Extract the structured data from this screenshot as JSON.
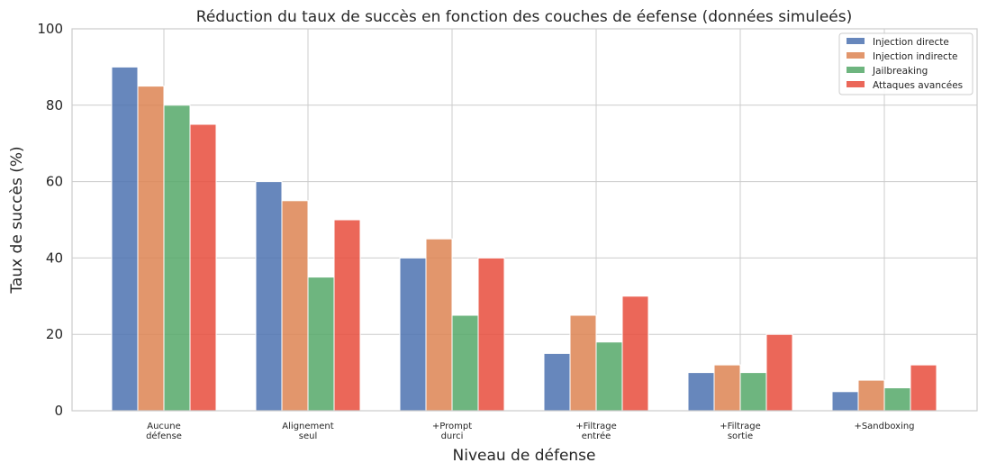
{
  "chart_data": {
    "type": "bar",
    "title": "Réduction du taux de succès en fonction des couches de éefense (données simuleés)",
    "xlabel": "Niveau de défense",
    "ylabel": "Taux de succès (%)",
    "ylim": [
      0,
      100
    ],
    "yticks": [
      0,
      20,
      40,
      60,
      80,
      100
    ],
    "grid": true,
    "legend_placement": "top-right",
    "categories": [
      [
        "Aucune",
        "défense"
      ],
      [
        "Alignement",
        "seul"
      ],
      [
        "+Prompt",
        "durci"
      ],
      [
        "+Filtrage",
        "entrée"
      ],
      [
        "+Filtrage",
        "sortie"
      ],
      [
        "+Sandboxing"
      ]
    ],
    "series": [
      {
        "name": "Injection directe",
        "color": "#4c72b0",
        "values": [
          90,
          60,
          40,
          15,
          10,
          5
        ]
      },
      {
        "name": "Injection indirecte",
        "color": "#dd8452",
        "values": [
          85,
          55,
          45,
          25,
          12,
          8
        ]
      },
      {
        "name": "Jailbreaking",
        "color": "#55a868",
        "values": [
          80,
          35,
          25,
          18,
          10,
          6
        ]
      },
      {
        "name": "Attaques avancées",
        "color": "#e74c3c",
        "values": [
          75,
          50,
          40,
          30,
          20,
          12
        ]
      }
    ]
  }
}
